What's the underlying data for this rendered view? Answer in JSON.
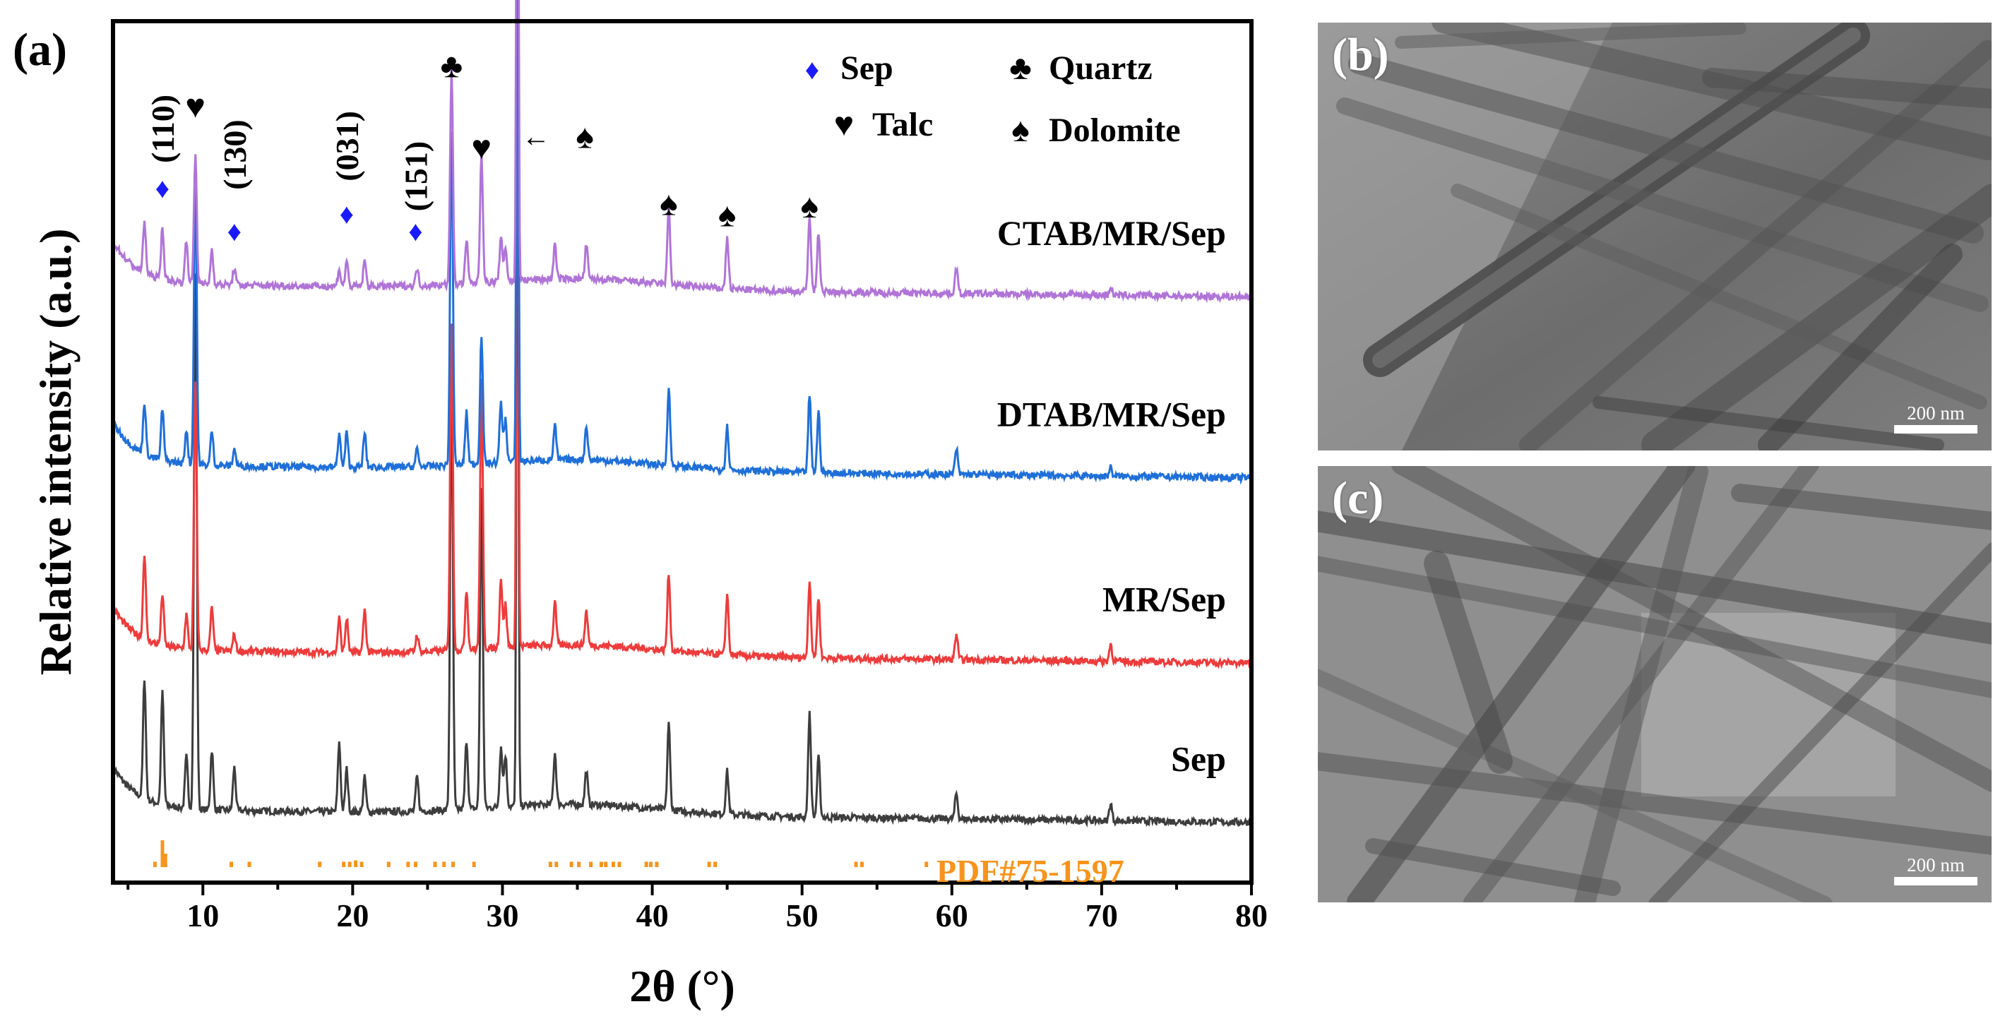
{
  "chart_data": {
    "type": "line",
    "panel_label": "(a)",
    "title": "",
    "xlabel": "2θ (°)",
    "ylabel": "Relative intensity (a.u.)",
    "xlim": [
      4,
      80
    ],
    "ylim": [
      0,
      1
    ],
    "x_ticks": [
      10,
      20,
      30,
      40,
      50,
      60,
      70,
      80
    ],
    "y_ticks": [],
    "grid": false,
    "colors": {
      "axes": "#000000",
      "Sep": "#3d3d3d",
      "MR/Sep": "#ee3b3b",
      "DTAB/MR/Sep": "#1f6fd9",
      "CTAB/MR/Sep": "#b074d8",
      "reference": "#f7941d",
      "sep_marker": "#1a1aff"
    },
    "series": [
      {
        "name": "Sep",
        "baseline": 0.085,
        "offset_label": "Sep"
      },
      {
        "name": "MR/Sep",
        "baseline": 0.27,
        "offset_label": "MR/Sep"
      },
      {
        "name": "DTAB/MR/Sep",
        "baseline": 0.485,
        "offset_label": "DTAB/MR/Sep"
      },
      {
        "name": "CTAB/MR/Sep",
        "baseline": 0.695,
        "offset_label": "CTAB/MR/Sep"
      }
    ],
    "peaks": [
      {
        "x": 6.1,
        "Sep": 0.14,
        "MR/Sep": 0.1,
        "DTAB/MR/Sep": 0.06,
        "CTAB/MR/Sep": 0.06
      },
      {
        "x": 7.3,
        "Sep": 0.13,
        "MR/Sep": 0.06,
        "DTAB/MR/Sep": 0.06,
        "CTAB/MR/Sep": 0.06
      },
      {
        "x": 8.9,
        "Sep": 0.06,
        "MR/Sep": 0.04,
        "DTAB/MR/Sep": 0.04,
        "CTAB/MR/Sep": 0.05
      },
      {
        "x": 9.5,
        "Sep": 0.62,
        "MR/Sep": 0.31,
        "DTAB/MR/Sep": 0.34,
        "CTAB/MR/Sep": 0.15
      },
      {
        "x": 10.6,
        "Sep": 0.07,
        "MR/Sep": 0.05,
        "DTAB/MR/Sep": 0.04,
        "CTAB/MR/Sep": 0.04
      },
      {
        "x": 12.1,
        "Sep": 0.05,
        "MR/Sep": 0.02,
        "DTAB/MR/Sep": 0.02,
        "CTAB/MR/Sep": 0.02
      },
      {
        "x": 19.1,
        "Sep": 0.08,
        "MR/Sep": 0.04,
        "DTAB/MR/Sep": 0.04,
        "CTAB/MR/Sep": 0.02
      },
      {
        "x": 19.6,
        "Sep": 0.05,
        "MR/Sep": 0.04,
        "DTAB/MR/Sep": 0.04,
        "CTAB/MR/Sep": 0.03
      },
      {
        "x": 20.8,
        "Sep": 0.04,
        "MR/Sep": 0.05,
        "DTAB/MR/Sep": 0.04,
        "CTAB/MR/Sep": 0.03
      },
      {
        "x": 24.3,
        "Sep": 0.04,
        "MR/Sep": 0.02,
        "DTAB/MR/Sep": 0.02,
        "CTAB/MR/Sep": 0.02
      },
      {
        "x": 26.6,
        "Sep": 0.5,
        "MR/Sep": 0.38,
        "DTAB/MR/Sep": 0.39,
        "CTAB/MR/Sep": 0.25
      },
      {
        "x": 27.6,
        "Sep": 0.08,
        "MR/Sep": 0.07,
        "DTAB/MR/Sep": 0.06,
        "CTAB/MR/Sep": 0.05
      },
      {
        "x": 28.6,
        "Sep": 0.37,
        "MR/Sep": 0.31,
        "DTAB/MR/Sep": 0.15,
        "CTAB/MR/Sep": 0.15
      },
      {
        "x": 29.9,
        "Sep": 0.07,
        "MR/Sep": 0.08,
        "DTAB/MR/Sep": 0.07,
        "CTAB/MR/Sep": 0.05
      },
      {
        "x": 30.2,
        "Sep": 0.06,
        "MR/Sep": 0.05,
        "DTAB/MR/Sep": 0.05,
        "CTAB/MR/Sep": 0.04
      },
      {
        "x": 31.0,
        "Sep": 0.95,
        "MR/Sep": 0.92,
        "DTAB/MR/Sep": 0.85,
        "CTAB/MR/Sep": 0.97
      },
      {
        "x": 33.5,
        "Sep": 0.06,
        "MR/Sep": 0.05,
        "DTAB/MR/Sep": 0.04,
        "CTAB/MR/Sep": 0.04
      },
      {
        "x": 35.6,
        "Sep": 0.04,
        "MR/Sep": 0.04,
        "DTAB/MR/Sep": 0.04,
        "CTAB/MR/Sep": 0.04
      },
      {
        "x": 41.1,
        "Sep": 0.1,
        "MR/Sep": 0.09,
        "DTAB/MR/Sep": 0.09,
        "CTAB/MR/Sep": 0.09
      },
      {
        "x": 45.0,
        "Sep": 0.05,
        "MR/Sep": 0.07,
        "DTAB/MR/Sep": 0.05,
        "CTAB/MR/Sep": 0.06
      },
      {
        "x": 50.5,
        "Sep": 0.12,
        "MR/Sep": 0.09,
        "DTAB/MR/Sep": 0.09,
        "CTAB/MR/Sep": 0.09
      },
      {
        "x": 51.1,
        "Sep": 0.07,
        "MR/Sep": 0.07,
        "DTAB/MR/Sep": 0.07,
        "CTAB/MR/Sep": 0.07
      },
      {
        "x": 60.3,
        "Sep": 0.03,
        "MR/Sep": 0.03,
        "DTAB/MR/Sep": 0.03,
        "CTAB/MR/Sep": 0.03
      },
      {
        "x": 70.6,
        "Sep": 0.02,
        "MR/Sep": 0.02,
        "DTAB/MR/Sep": 0.01,
        "CTAB/MR/Sep": 0.01
      }
    ],
    "reference_pattern": {
      "label": "PDF#75-1597",
      "lines": [
        {
          "x": 6.8,
          "h": 0.2
        },
        {
          "x": 7.3,
          "h": 1.0
        },
        {
          "x": 7.5,
          "h": 0.5
        },
        {
          "x": 11.9,
          "h": 0.2
        },
        {
          "x": 13.1,
          "h": 0.2
        },
        {
          "x": 17.8,
          "h": 0.2
        },
        {
          "x": 19.4,
          "h": 0.2
        },
        {
          "x": 19.8,
          "h": 0.2
        },
        {
          "x": 20.2,
          "h": 0.25
        },
        {
          "x": 20.6,
          "h": 0.2
        },
        {
          "x": 22.4,
          "h": 0.2
        },
        {
          "x": 23.7,
          "h": 0.2
        },
        {
          "x": 24.2,
          "h": 0.2
        },
        {
          "x": 25.5,
          "h": 0.2
        },
        {
          "x": 26.1,
          "h": 0.2
        },
        {
          "x": 26.7,
          "h": 0.2
        },
        {
          "x": 28.1,
          "h": 0.2
        },
        {
          "x": 33.2,
          "h": 0.2
        },
        {
          "x": 33.6,
          "h": 0.2
        },
        {
          "x": 34.6,
          "h": 0.2
        },
        {
          "x": 35.1,
          "h": 0.2
        },
        {
          "x": 35.9,
          "h": 0.2
        },
        {
          "x": 36.6,
          "h": 0.2
        },
        {
          "x": 36.9,
          "h": 0.2
        },
        {
          "x": 37.4,
          "h": 0.2
        },
        {
          "x": 37.8,
          "h": 0.2
        },
        {
          "x": 39.6,
          "h": 0.2
        },
        {
          "x": 39.9,
          "h": 0.2
        },
        {
          "x": 40.3,
          "h": 0.2
        },
        {
          "x": 43.8,
          "h": 0.2
        },
        {
          "x": 44.2,
          "h": 0.2
        },
        {
          "x": 53.6,
          "h": 0.2
        },
        {
          "x": 54.0,
          "h": 0.2
        },
        {
          "x": 58.3,
          "h": 0.2
        }
      ]
    },
    "hkl_labels": [
      {
        "text": "(110)",
        "x": 7.3
      },
      {
        "text": "(130)",
        "x": 12.1
      },
      {
        "text": "(031)",
        "x": 19.6
      },
      {
        "text": "(151)",
        "x": 24.2
      }
    ],
    "phase_markers": [
      {
        "phase": "Sep",
        "symbol": "♦",
        "x": 7.3
      },
      {
        "phase": "Sep",
        "symbol": "♦",
        "x": 12.1
      },
      {
        "phase": "Sep",
        "symbol": "♦",
        "x": 19.6
      },
      {
        "phase": "Sep",
        "symbol": "♦",
        "x": 24.2
      },
      {
        "phase": "Talc",
        "symbol": "♥",
        "x": 9.5
      },
      {
        "phase": "Talc",
        "symbol": "♥",
        "x": 28.6
      },
      {
        "phase": "Quartz",
        "symbol": "♣",
        "x": 26.6
      },
      {
        "phase": "Dolomite",
        "symbol": "♠",
        "x": 41.1
      },
      {
        "phase": "Dolomite",
        "symbol": "♠",
        "x": 45.0
      },
      {
        "phase": "Dolomite",
        "symbol": "♠",
        "x": 50.5
      }
    ],
    "dolomite_arrow": {
      "symbol": "♠",
      "arrow": "←",
      "points_to_x": 31.0
    },
    "legend": [
      {
        "symbol": "♦",
        "label": "Sep"
      },
      {
        "symbol": "♣",
        "label": "Quartz"
      },
      {
        "symbol": "♥",
        "label": "Talc"
      },
      {
        "symbol": "♠",
        "label": "Dolomite"
      }
    ],
    "legend_position": "top-right"
  },
  "tem_panels": [
    {
      "label": "(b)",
      "scale": "200 nm"
    },
    {
      "label": "(c)",
      "scale": "200 nm"
    }
  ]
}
